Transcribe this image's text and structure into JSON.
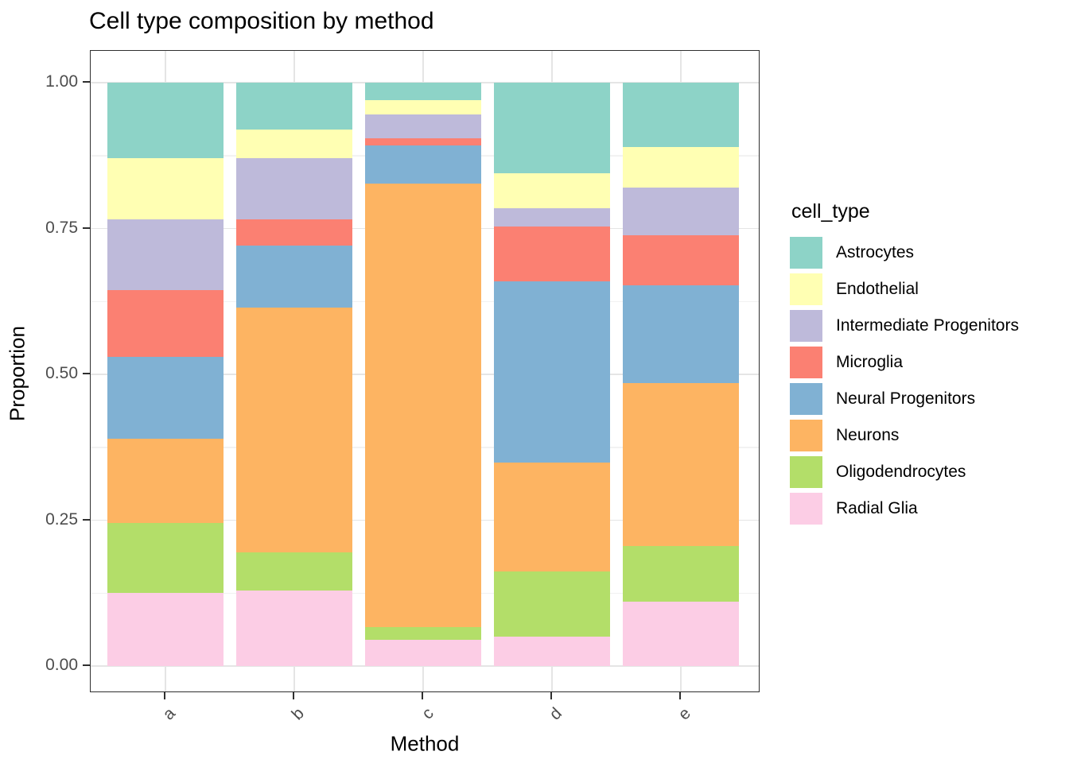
{
  "title": "Cell type composition by method",
  "legend": {
    "title": "cell_type"
  },
  "style": {
    "background": "#ffffff",
    "panel_border": "#2f2f2f",
    "grid_major": "#e5e5e5",
    "grid_minor": "#f2f2f2",
    "tick_color": "#2f2f2f",
    "axis_text_color": "#4d4d4d",
    "text_color": "#000000"
  },
  "chart_data": {
    "type": "bar",
    "subtype": "stacked-normalized",
    "title": "Cell type composition by method",
    "xlabel": "Method",
    "ylabel": "Proportion",
    "categories": [
      "a",
      "b",
      "c",
      "d",
      "e"
    ],
    "ylim": [
      0,
      1
    ],
    "y_major_ticks": [
      0.0,
      0.25,
      0.5,
      0.75,
      1.0
    ],
    "y_minor_ticks": [
      0.125,
      0.375,
      0.625,
      0.875
    ],
    "y_tick_format": [
      "0.00",
      "0.25",
      "0.50",
      "0.75",
      "1.00"
    ],
    "grid": true,
    "legend_position": "right",
    "stack_order": "first series at top of bar",
    "series": [
      {
        "name": "Astrocytes",
        "color": "#8DD3C7",
        "values": [
          0.13,
          0.08,
          0.03,
          0.155,
          0.11
        ]
      },
      {
        "name": "Endothelial",
        "color": "#FFFFB3",
        "values": [
          0.105,
          0.05,
          0.025,
          0.06,
          0.07
        ]
      },
      {
        "name": "Intermediate Progenitors",
        "color": "#BEBADA",
        "values": [
          0.12,
          0.105,
          0.04,
          0.032,
          0.082
        ]
      },
      {
        "name": "Microglia",
        "color": "#FB8072",
        "values": [
          0.115,
          0.045,
          0.013,
          0.094,
          0.086
        ]
      },
      {
        "name": "Neural Progenitors",
        "color": "#80B1D3",
        "values": [
          0.14,
          0.105,
          0.065,
          0.31,
          0.167
        ]
      },
      {
        "name": "Neurons",
        "color": "#FDB462",
        "values": [
          0.145,
          0.42,
          0.76,
          0.187,
          0.28
        ]
      },
      {
        "name": "Oligodendrocytes",
        "color": "#B3DE69",
        "values": [
          0.12,
          0.065,
          0.022,
          0.112,
          0.095
        ]
      },
      {
        "name": "Radial Glia",
        "color": "#FCCDE5",
        "values": [
          0.125,
          0.13,
          0.045,
          0.05,
          0.11
        ]
      }
    ]
  }
}
